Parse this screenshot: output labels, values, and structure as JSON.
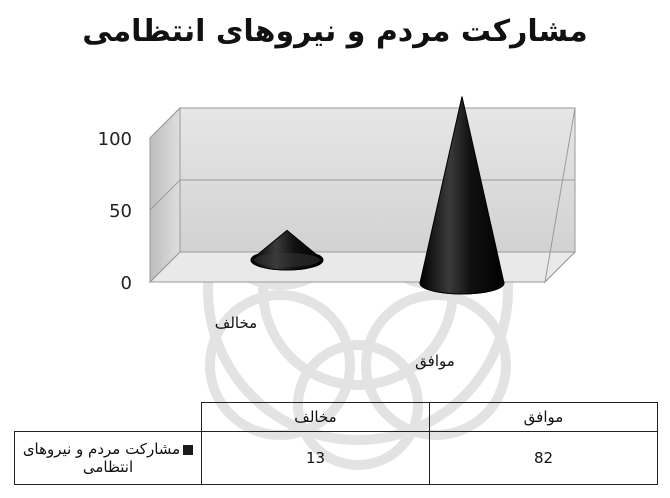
{
  "chart_data": {
    "type": "bar",
    "shape": "cone-3d",
    "title": "مشارکت مردم و نیروهای انتظامی",
    "categories": [
      "مخالف",
      "موافق"
    ],
    "series": [
      {
        "name": "مشارکت مردم و نیروهای انتظامی",
        "values": [
          13,
          82
        ],
        "color": "#1a1a1a"
      }
    ],
    "y_ticks": [
      "0",
      "50",
      "100"
    ],
    "ylim": [
      0,
      100
    ],
    "grid": true,
    "legend": "data-table-left",
    "data_table": true
  }
}
